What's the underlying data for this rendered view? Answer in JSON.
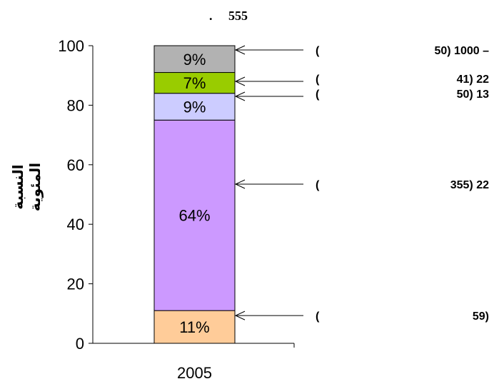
{
  "chart_data": {
    "type": "bar",
    "stacked": true,
    "title": ".     555",
    "ylabel_lines": [
      "النسبة",
      "المئوية"
    ],
    "xlabel": "",
    "categories": [
      "2005"
    ],
    "ylim": [
      0,
      100
    ],
    "yticks": [
      0,
      20,
      40,
      60,
      80,
      100
    ],
    "grid": false,
    "segments": [
      {
        "value": 11,
        "label": "11%",
        "color": "#ffcc99"
      },
      {
        "value": 64,
        "label": "64%",
        "color": "#cc99ff"
      },
      {
        "value": 9,
        "label": "9%",
        "color": "#ccccff"
      },
      {
        "value": 7,
        "label": "7%",
        "color": "#99cc00"
      },
      {
        "value": 9,
        "label": "9%",
        "color": "#b2b2b2"
      }
    ],
    "annotations": [
      {
        "segment": 4,
        "paren": "(",
        "text": "50) 1000 –"
      },
      {
        "segment": 3,
        "paren": "(",
        "text": "41)       22"
      },
      {
        "segment": 2,
        "paren": "(",
        "text": "50)       13"
      },
      {
        "segment": 1,
        "paren": "(",
        "text": "355)       22"
      },
      {
        "segment": 0,
        "paren": "(",
        "text": "59)"
      }
    ]
  }
}
